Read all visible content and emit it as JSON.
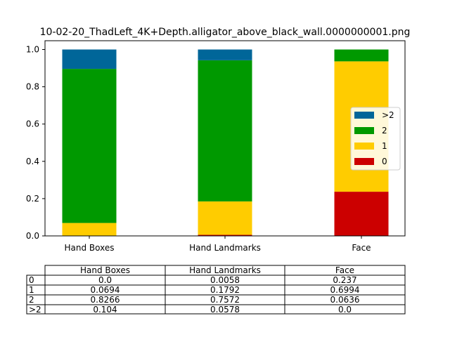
{
  "chart_data": {
    "type": "bar",
    "stacked": true,
    "title": "10-02-20_ThadLeft_4K+Depth.alligator_above_black_wall.0000000001.png",
    "categories": [
      "Hand Boxes",
      "Hand Landmarks",
      "Face"
    ],
    "ylim": [
      0,
      1.05
    ],
    "yticks": [
      "0.0",
      "0.2",
      "0.4",
      "0.6",
      "0.8",
      "1.0"
    ],
    "series": [
      {
        "name": "0",
        "color": "#cc0000",
        "values": [
          0.0,
          0.0058,
          0.237
        ]
      },
      {
        "name": "1",
        "color": "#ffcc00",
        "values": [
          0.0694,
          0.1792,
          0.6994
        ]
      },
      {
        "name": "2",
        "color": "#009900",
        "values": [
          0.8266,
          0.7572,
          0.0636
        ]
      },
      {
        "name": ">2",
        "color": "#006699",
        "values": [
          0.104,
          0.0578,
          0.0
        ]
      }
    ],
    "legend": {
      "position": "right",
      "order": [
        ">2",
        "2",
        "1",
        "0"
      ]
    },
    "grid": false,
    "table": {
      "columns": [
        "Hand Boxes",
        "Hand Landmarks",
        "Face"
      ],
      "rows": [
        {
          "label": "0",
          "cells": [
            "0.0",
            "0.0058",
            "0.237"
          ]
        },
        {
          "label": "1",
          "cells": [
            "0.0694",
            "0.1792",
            "0.6994"
          ]
        },
        {
          "label": "2",
          "cells": [
            "0.8266",
            "0.7572",
            "0.0636"
          ]
        },
        {
          "label": ">2",
          "cells": [
            "0.104",
            "0.0578",
            "0.0"
          ]
        }
      ]
    }
  }
}
